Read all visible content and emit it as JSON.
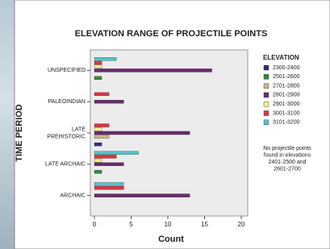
{
  "chart_data": {
    "type": "bar",
    "orientation": "horizontal",
    "title": "ELEVATION RANGE OF PROJECTILE POINTS",
    "x_label": "Count",
    "y_label": "TIME PERIOD",
    "legend_title": "ELEVATION",
    "annotation": [
      "No projectile points",
      "found in elevations",
      "2401-2500 and",
      "2601-2700"
    ],
    "categories": [
      "UNSPECIFIED",
      "PALEOINDIAN",
      "LATE PREHISTORIC",
      "LATE ARCHAIC",
      "ARCHAIC"
    ],
    "series": [
      {
        "name": "2300-2400",
        "color": "#2b2f7a",
        "values": [
          0,
          0,
          1,
          0,
          0
        ]
      },
      {
        "name": "2501-2600",
        "color": "#2e8b3a",
        "values": [
          1,
          0,
          0,
          1,
          0
        ]
      },
      {
        "name": "2701-2800",
        "color": "#c8b78a",
        "values": [
          0,
          0,
          2,
          0,
          0
        ]
      },
      {
        "name": "2801-2900",
        "color": "#6a2a6e",
        "values": [
          16,
          4,
          13,
          4,
          13
        ]
      },
      {
        "name": "2901-3000",
        "color": "#f4f08a",
        "values": [
          1,
          0,
          1,
          1,
          0
        ]
      },
      {
        "name": "3001-3100",
        "color": "#d9363e",
        "values": [
          1,
          2,
          2,
          3,
          4
        ]
      },
      {
        "name": "3101-3200",
        "color": "#56c0c8",
        "values": [
          3,
          0,
          0,
          6,
          4
        ]
      }
    ],
    "xlim": [
      0,
      21
    ],
    "xticks": [
      0,
      5,
      10,
      15,
      20
    ]
  }
}
